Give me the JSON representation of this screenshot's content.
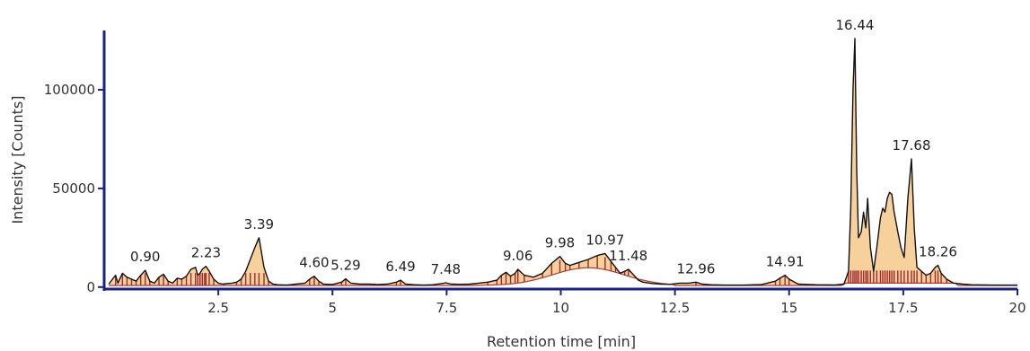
{
  "chart_data": {
    "type": "line",
    "title": "",
    "xlabel": "Retention time [min]",
    "ylabel": "Intensity [Counts]",
    "xlim": [
      0,
      20
    ],
    "ylim": [
      -1000,
      130000
    ],
    "x_ticks": [
      {
        "value": 2.5,
        "label": "2.5"
      },
      {
        "value": 5,
        "label": "5"
      },
      {
        "value": 7.5,
        "label": "7.5"
      },
      {
        "value": 10,
        "label": "10"
      },
      {
        "value": 12.5,
        "label": "12.5"
      },
      {
        "value": 15,
        "label": "15"
      },
      {
        "value": 17.5,
        "label": "17.5"
      },
      {
        "value": 20,
        "label": "20"
      }
    ],
    "y_ticks": [
      {
        "value": 0,
        "label": "0"
      },
      {
        "value": 50000,
        "label": "50000"
      },
      {
        "value": 100000,
        "label": "100000"
      }
    ],
    "grid": false,
    "colors": {
      "axis": "#1a237e",
      "trace": "#111111",
      "fill": "#f5c98a",
      "baseline": "#b03a2e",
      "markers": "#a0282e"
    },
    "peak_labels": [
      {
        "rt": 0.9,
        "label": "0.90",
        "height": 8500
      },
      {
        "rt": 2.23,
        "label": "2.23",
        "height": 10500
      },
      {
        "rt": 3.39,
        "label": "3.39",
        "height": 25000
      },
      {
        "rt": 4.6,
        "label": "4.60",
        "height": 5500
      },
      {
        "rt": 5.29,
        "label": "5.29",
        "height": 4200
      },
      {
        "rt": 6.49,
        "label": "6.49",
        "height": 3500
      },
      {
        "rt": 7.48,
        "label": "7.48",
        "height": 2200
      },
      {
        "rt": 9.06,
        "label": "9.06",
        "height": 9000
      },
      {
        "rt": 9.98,
        "label": "9.98",
        "height": 15500
      },
      {
        "rt": 10.97,
        "label": "10.97",
        "height": 17000
      },
      {
        "rt": 11.48,
        "label": "11.48",
        "height": 9000
      },
      {
        "rt": 12.96,
        "label": "12.96",
        "height": 2500
      },
      {
        "rt": 14.91,
        "label": "14.91",
        "height": 6000
      },
      {
        "rt": 16.44,
        "label": "16.44",
        "height": 126000
      },
      {
        "rt": 17.68,
        "label": "17.68",
        "height": 65000
      },
      {
        "rt": 18.26,
        "label": "18.26",
        "height": 11000
      }
    ],
    "series": [
      {
        "x": [
          0.1,
          0.25,
          0.3,
          0.4,
          0.5,
          0.6,
          0.7,
          0.8,
          0.9,
          1.0,
          1.1,
          1.2,
          1.3,
          1.4,
          1.5,
          1.6,
          1.7,
          1.8,
          1.9,
          2.0,
          2.05,
          2.1,
          2.15,
          2.2,
          2.23,
          2.3,
          2.4,
          2.5,
          2.6,
          2.7,
          2.8,
          2.9,
          3.0,
          3.1,
          3.2,
          3.3,
          3.39,
          3.5,
          3.6,
          3.7,
          3.8,
          4.0,
          4.2,
          4.4,
          4.5,
          4.6,
          4.7,
          4.8,
          5.0,
          5.2,
          5.29,
          5.4,
          5.6,
          5.8,
          6.0,
          6.2,
          6.4,
          6.49,
          6.6,
          6.8,
          7.0,
          7.2,
          7.4,
          7.48,
          7.6,
          7.8,
          8.0,
          8.2,
          8.4,
          8.6,
          8.7,
          8.8,
          8.9,
          9.0,
          9.06,
          9.2,
          9.4,
          9.6,
          9.8,
          9.98,
          10.1,
          10.2,
          10.4,
          10.6,
          10.8,
          10.97,
          11.1,
          11.2,
          11.3,
          11.4,
          11.48,
          11.6,
          11.7,
          11.8,
          12.0,
          12.2,
          12.4,
          12.6,
          12.8,
          12.96,
          13.1,
          13.3,
          13.6,
          14.0,
          14.4,
          14.7,
          14.8,
          14.91,
          15.0,
          15.2,
          15.6,
          16.0,
          16.2,
          16.3,
          16.35,
          16.4,
          16.44,
          16.48,
          16.52,
          16.58,
          16.63,
          16.68,
          16.72,
          16.78,
          16.85,
          16.92,
          17.0,
          17.05,
          17.1,
          17.15,
          17.2,
          17.25,
          17.3,
          17.38,
          17.45,
          17.52,
          17.6,
          17.68,
          17.74,
          17.8,
          17.9,
          18.0,
          18.1,
          18.2,
          18.26,
          18.33,
          18.45,
          18.6,
          18.8,
          19.0,
          19.5,
          20.0
        ],
        "y": [
          1500,
          6000,
          2000,
          7000,
          5000,
          4000,
          3000,
          6000,
          8500,
          3000,
          2000,
          5000,
          6500,
          3000,
          2000,
          4500,
          4000,
          5500,
          9000,
          10000,
          6000,
          7000,
          9000,
          10000,
          10500,
          8000,
          4000,
          2000,
          1500,
          1800,
          2000,
          2500,
          4000,
          8000,
          14000,
          20000,
          25000,
          10000,
          3000,
          1500,
          1200,
          1000,
          1500,
          2000,
          4000,
          5500,
          3000,
          1500,
          1300,
          2500,
          4200,
          2000,
          1500,
          1500,
          1300,
          1500,
          2500,
          3500,
          1500,
          1200,
          1000,
          1200,
          1800,
          2200,
          1500,
          1400,
          1500,
          2000,
          2500,
          3500,
          6000,
          7500,
          5500,
          7000,
          9000,
          6000,
          5000,
          7000,
          12000,
          15500,
          12000,
          11000,
          12500,
          14000,
          16000,
          17000,
          13000,
          10000,
          7000,
          8000,
          9000,
          6000,
          3500,
          2500,
          1800,
          1500,
          1400,
          2000,
          2000,
          2500,
          1500,
          1200,
          1000,
          1000,
          1300,
          3000,
          4500,
          6000,
          4000,
          1500,
          1200,
          1100,
          1500,
          8000,
          40000,
          100000,
          126000,
          60000,
          25000,
          28000,
          38000,
          30000,
          45000,
          20000,
          8000,
          20000,
          35000,
          40000,
          38000,
          45000,
          48000,
          47000,
          38000,
          28000,
          20000,
          15000,
          45000,
          65000,
          30000,
          10000,
          8000,
          6000,
          7000,
          10000,
          11000,
          7000,
          4000,
          2000,
          1500,
          1200,
          1000,
          1000
        ]
      }
    ]
  }
}
